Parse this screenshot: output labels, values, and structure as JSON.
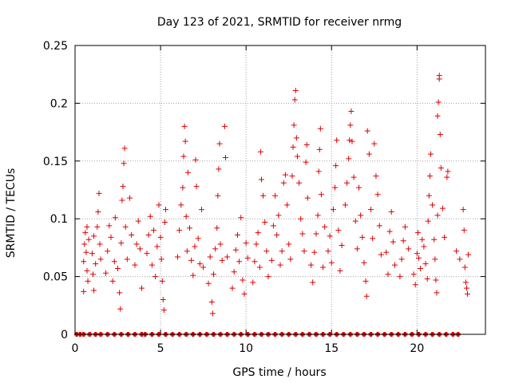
{
  "chart_data": {
    "type": "scatter",
    "title": "Day 123 of 2021, SRMTID for receiver nrmg",
    "xlabel": "GPS time / hours",
    "ylabel": "SRMTID / TECUs",
    "xlim": [
      0,
      24
    ],
    "ylim": [
      0,
      0.25
    ],
    "xticks": [
      0,
      5,
      10,
      15,
      20
    ],
    "yticks": [
      0,
      0.05,
      0.1,
      0.15,
      0.2,
      0.25
    ],
    "xtick_labels": [
      "0",
      "5",
      "10",
      "15",
      "20"
    ],
    "ytick_labels": [
      "0",
      "0.05",
      "0.1",
      "0.15",
      "0.2",
      "0.25"
    ],
    "grid": true,
    "marker": "+",
    "color": "#e00000",
    "baseline_value": 0,
    "series": [
      {
        "name": "SRMTID",
        "points": [
          [
            0.5,
            0.037
          ],
          [
            0.5,
            0.063
          ],
          [
            0.55,
            0.078
          ],
          [
            0.6,
            0.088
          ],
          [
            0.65,
            0.071
          ],
          [
            0.7,
            0.055
          ],
          [
            0.7,
            0.093
          ],
          [
            0.75,
            0.046
          ],
          [
            0.8,
            0.082
          ],
          [
            1.0,
            0.07
          ],
          [
            1.05,
            0.052
          ],
          [
            1.1,
            0.038
          ],
          [
            1.1,
            0.085
          ],
          [
            1.2,
            0.061
          ],
          [
            1.3,
            0.093
          ],
          [
            1.35,
            0.106
          ],
          [
            1.4,
            0.122
          ],
          [
            1.45,
            0.078
          ],
          [
            1.5,
            0.065
          ],
          [
            1.8,
            0.053
          ],
          [
            1.9,
            0.072
          ],
          [
            2.0,
            0.094
          ],
          [
            2.1,
            0.084
          ],
          [
            2.2,
            0.046
          ],
          [
            2.3,
            0.063
          ],
          [
            2.35,
            0.101
          ],
          [
            2.5,
            0.057
          ],
          [
            2.6,
            0.036
          ],
          [
            2.65,
            0.022
          ],
          [
            2.7,
            0.079
          ],
          [
            2.75,
            0.116
          ],
          [
            2.8,
            0.128
          ],
          [
            2.85,
            0.148
          ],
          [
            2.9,
            0.161
          ],
          [
            2.95,
            0.093
          ],
          [
            3.05,
            0.065
          ],
          [
            3.2,
            0.118
          ],
          [
            3.3,
            0.086
          ],
          [
            3.5,
            0.06
          ],
          [
            3.6,
            0.078
          ],
          [
            3.7,
            0.098
          ],
          [
            3.8,
            0.074
          ],
          [
            3.9,
            0.04
          ],
          [
            4.2,
            0.07
          ],
          [
            4.3,
            0.086
          ],
          [
            4.4,
            0.102
          ],
          [
            4.5,
            0.06
          ],
          [
            4.6,
            0.09
          ],
          [
            4.7,
            0.05
          ],
          [
            4.8,
            0.076
          ],
          [
            4.9,
            0.112
          ],
          [
            5.0,
            0.084
          ],
          [
            5.05,
            0.065
          ],
          [
            5.1,
            0.046
          ],
          [
            5.15,
            0.03
          ],
          [
            5.2,
            0.021
          ],
          [
            5.25,
            0.097
          ],
          [
            5.3,
            0.108
          ],
          [
            6.0,
            0.067
          ],
          [
            6.1,
            0.09
          ],
          [
            6.2,
            0.112
          ],
          [
            6.3,
            0.127
          ],
          [
            6.35,
            0.154
          ],
          [
            6.4,
            0.18
          ],
          [
            6.45,
            0.167
          ],
          [
            6.5,
            0.102
          ],
          [
            6.55,
            0.072
          ],
          [
            6.6,
            0.14
          ],
          [
            6.7,
            0.092
          ],
          [
            6.8,
            0.064
          ],
          [
            6.9,
            0.051
          ],
          [
            7.0,
            0.076
          ],
          [
            7.05,
            0.151
          ],
          [
            7.1,
            0.128
          ],
          [
            7.2,
            0.083
          ],
          [
            7.3,
            0.061
          ],
          [
            7.4,
            0.108
          ],
          [
            7.5,
            0.058
          ],
          [
            7.8,
            0.044
          ],
          [
            7.9,
            0.067
          ],
          [
            8.0,
            0.028
          ],
          [
            8.05,
            0.018
          ],
          [
            8.1,
            0.052
          ],
          [
            8.2,
            0.074
          ],
          [
            8.3,
            0.092
          ],
          [
            8.35,
            0.12
          ],
          [
            8.4,
            0.143
          ],
          [
            8.45,
            0.165
          ],
          [
            8.5,
            0.078
          ],
          [
            8.6,
            0.064
          ],
          [
            8.75,
            0.18
          ],
          [
            8.8,
            0.153
          ],
          [
            8.9,
            0.067
          ],
          [
            9.2,
            0.04
          ],
          [
            9.3,
            0.054
          ],
          [
            9.4,
            0.073
          ],
          [
            9.5,
            0.086
          ],
          [
            9.6,
            0.063
          ],
          [
            9.7,
            0.101
          ],
          [
            9.8,
            0.047
          ],
          [
            9.9,
            0.035
          ],
          [
            10.0,
            0.079
          ],
          [
            10.1,
            0.066
          ],
          [
            10.4,
            0.045
          ],
          [
            10.5,
            0.063
          ],
          [
            10.6,
            0.078
          ],
          [
            10.7,
            0.088
          ],
          [
            10.8,
            0.058
          ],
          [
            10.85,
            0.158
          ],
          [
            10.9,
            0.134
          ],
          [
            11.0,
            0.12
          ],
          [
            11.1,
            0.097
          ],
          [
            11.2,
            0.072
          ],
          [
            11.3,
            0.05
          ],
          [
            11.5,
            0.064
          ],
          [
            11.6,
            0.094
          ],
          [
            11.7,
            0.12
          ],
          [
            11.8,
            0.086
          ],
          [
            11.9,
            0.103
          ],
          [
            12.0,
            0.06
          ],
          [
            12.1,
            0.072
          ],
          [
            12.2,
            0.131
          ],
          [
            12.3,
            0.138
          ],
          [
            12.4,
            0.112
          ],
          [
            12.5,
            0.078
          ],
          [
            12.6,
            0.065
          ],
          [
            12.7,
            0.137
          ],
          [
            12.75,
            0.162
          ],
          [
            12.8,
            0.181
          ],
          [
            12.85,
            0.203
          ],
          [
            12.9,
            0.211
          ],
          [
            12.95,
            0.17
          ],
          [
            13.0,
            0.154
          ],
          [
            13.1,
            0.131
          ],
          [
            13.2,
            0.1
          ],
          [
            13.3,
            0.087
          ],
          [
            13.4,
            0.072
          ],
          [
            13.5,
            0.149
          ],
          [
            13.55,
            0.164
          ],
          [
            13.6,
            0.118
          ],
          [
            13.8,
            0.06
          ],
          [
            13.9,
            0.045
          ],
          [
            14.0,
            0.071
          ],
          [
            14.1,
            0.087
          ],
          [
            14.2,
            0.103
          ],
          [
            14.25,
            0.141
          ],
          [
            14.3,
            0.16
          ],
          [
            14.35,
            0.178
          ],
          [
            14.4,
            0.121
          ],
          [
            14.5,
            0.058
          ],
          [
            14.6,
            0.093
          ],
          [
            14.8,
            0.072
          ],
          [
            14.9,
            0.085
          ],
          [
            15.0,
            0.062
          ],
          [
            15.1,
            0.108
          ],
          [
            15.2,
            0.127
          ],
          [
            15.25,
            0.146
          ],
          [
            15.3,
            0.168
          ],
          [
            15.4,
            0.09
          ],
          [
            15.5,
            0.055
          ],
          [
            15.6,
            0.077
          ],
          [
            15.8,
            0.112
          ],
          [
            15.9,
            0.131
          ],
          [
            16.0,
            0.152
          ],
          [
            16.05,
            0.168
          ],
          [
            16.1,
            0.181
          ],
          [
            16.15,
            0.193
          ],
          [
            16.2,
            0.167
          ],
          [
            16.3,
            0.136
          ],
          [
            16.4,
            0.098
          ],
          [
            16.5,
            0.074
          ],
          [
            16.6,
            0.127
          ],
          [
            16.7,
            0.103
          ],
          [
            16.8,
            0.084
          ],
          [
            16.9,
            0.062
          ],
          [
            17.0,
            0.046
          ],
          [
            17.05,
            0.033
          ],
          [
            17.1,
            0.176
          ],
          [
            17.2,
            0.156
          ],
          [
            17.3,
            0.108
          ],
          [
            17.4,
            0.083
          ],
          [
            17.5,
            0.165
          ],
          [
            17.6,
            0.137
          ],
          [
            17.7,
            0.121
          ],
          [
            17.8,
            0.094
          ],
          [
            17.9,
            0.069
          ],
          [
            18.2,
            0.071
          ],
          [
            18.3,
            0.052
          ],
          [
            18.4,
            0.089
          ],
          [
            18.5,
            0.106
          ],
          [
            18.6,
            0.08
          ],
          [
            18.7,
            0.06
          ],
          [
            19.0,
            0.05
          ],
          [
            19.1,
            0.065
          ],
          [
            19.2,
            0.081
          ],
          [
            19.3,
            0.093
          ],
          [
            19.5,
            0.074
          ],
          [
            19.8,
            0.052
          ],
          [
            19.9,
            0.043
          ],
          [
            20.0,
            0.07
          ],
          [
            20.05,
            0.088
          ],
          [
            20.1,
            0.066
          ],
          [
            20.2,
            0.057
          ],
          [
            20.3,
            0.082
          ],
          [
            20.4,
            0.076
          ],
          [
            20.5,
            0.061
          ],
          [
            20.6,
            0.048
          ],
          [
            20.65,
            0.098
          ],
          [
            20.7,
            0.12
          ],
          [
            20.75,
            0.137
          ],
          [
            20.8,
            0.156
          ],
          [
            20.9,
            0.112
          ],
          [
            21.0,
            0.082
          ],
          [
            21.05,
            0.065
          ],
          [
            21.1,
            0.047
          ],
          [
            21.15,
            0.036
          ],
          [
            21.2,
            0.103
          ],
          [
            21.2,
            0.189
          ],
          [
            21.25,
            0.201
          ],
          [
            21.3,
            0.221
          ],
          [
            21.3,
            0.224
          ],
          [
            21.35,
            0.173
          ],
          [
            21.4,
            0.144
          ],
          [
            21.5,
            0.109
          ],
          [
            21.6,
            0.084
          ],
          [
            21.75,
            0.136
          ],
          [
            21.8,
            0.141
          ],
          [
            22.3,
            0.072
          ],
          [
            22.5,
            0.065
          ],
          [
            22.7,
            0.108
          ],
          [
            22.75,
            0.09
          ],
          [
            22.8,
            0.058
          ],
          [
            22.85,
            0.045
          ],
          [
            22.9,
            0.04
          ],
          [
            22.95,
            0.035
          ],
          [
            23.0,
            0.069
          ]
        ],
        "zero_points_x": [
          0.1,
          0.3,
          0.5,
          0.85,
          1.2,
          1.5,
          1.9,
          2.3,
          2.7,
          3.1,
          3.5,
          3.9,
          4.1,
          4.5,
          4.9,
          5.3,
          5.7,
          6.1,
          6.5,
          6.9,
          7.3,
          7.7,
          8.1,
          8.5,
          8.9,
          9.3,
          9.7,
          10.1,
          10.5,
          10.9,
          11.3,
          11.7,
          12.1,
          12.5,
          12.9,
          13.3,
          13.7,
          14.1,
          14.5,
          14.9,
          15.3,
          15.7,
          16.1,
          16.5,
          16.9,
          17.3,
          17.7,
          18.1,
          18.5,
          18.9,
          19.3,
          19.7,
          20.1,
          20.5,
          20.9,
          21.3,
          21.7,
          22.1,
          22.4
        ]
      }
    ]
  }
}
